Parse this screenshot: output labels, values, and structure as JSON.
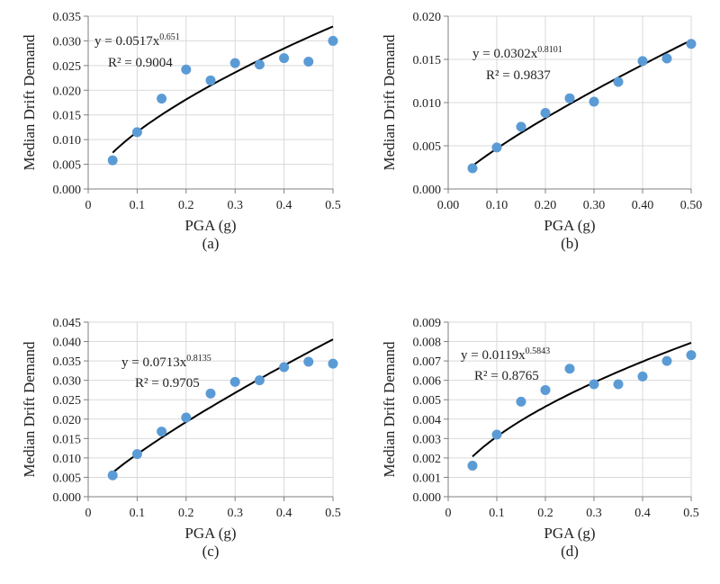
{
  "colors": {
    "point": "#5B9BD5",
    "trend": "#000000",
    "grid": "#d9d9d9",
    "axis": "#7f7f7f"
  },
  "chart_data": [
    {
      "type": "scatter",
      "panel_label": "(a)",
      "xlabel": "PGA (g)",
      "ylabel": "Median Drift Demand",
      "xlim": [
        0,
        0.5
      ],
      "ylim": [
        0,
        0.035
      ],
      "xticks": [
        "0",
        "0.1",
        "0.2",
        "0.3",
        "0.4",
        "0.5"
      ],
      "yticks": [
        "0.000",
        "0.005",
        "0.010",
        "0.015",
        "0.020",
        "0.025",
        "0.030",
        "0.035"
      ],
      "x": [
        0.05,
        0.1,
        0.15,
        0.2,
        0.25,
        0.3,
        0.35,
        0.4,
        0.45,
        0.5
      ],
      "y": [
        0.0058,
        0.0115,
        0.0183,
        0.0242,
        0.022,
        0.0255,
        0.0252,
        0.0265,
        0.0258,
        0.03
      ],
      "trendline": {
        "type": "power",
        "a": 0.0517,
        "b": 0.651,
        "equation": "y = 0.0517x",
        "exponent": "0.651",
        "r2_label": "R² = 0.9004"
      },
      "grid": true
    },
    {
      "type": "scatter",
      "panel_label": "(b)",
      "xlabel": "PGA (g)",
      "ylabel": "Median Drift Demand",
      "xlim": [
        0,
        0.5
      ],
      "ylim": [
        0,
        0.02
      ],
      "xticks": [
        "0.00",
        "0.10",
        "0.20",
        "0.30",
        "0.40",
        "0.50"
      ],
      "yticks": [
        "0.000",
        "0.005",
        "0.010",
        "0.015",
        "0.020"
      ],
      "x": [
        0.05,
        0.1,
        0.15,
        0.2,
        0.25,
        0.3,
        0.35,
        0.4,
        0.45,
        0.5
      ],
      "y": [
        0.0024,
        0.0048,
        0.0072,
        0.0088,
        0.0105,
        0.0101,
        0.0124,
        0.0148,
        0.0151,
        0.0168
      ],
      "trendline": {
        "type": "power",
        "a": 0.0302,
        "b": 0.8101,
        "equation": "y = 0.0302x",
        "exponent": "0.8101",
        "r2_label": "R² = 0.9837"
      },
      "grid": true
    },
    {
      "type": "scatter",
      "panel_label": "(c)",
      "xlabel": "PGA (g)",
      "ylabel": "Median Drift Demand",
      "xlim": [
        0,
        0.5
      ],
      "ylim": [
        0,
        0.045
      ],
      "xticks": [
        "0",
        "0.1",
        "0.2",
        "0.3",
        "0.4",
        "0.5"
      ],
      "yticks": [
        "0.000",
        "0.005",
        "0.010",
        "0.015",
        "0.020",
        "0.025",
        "0.030",
        "0.035",
        "0.040",
        "0.045"
      ],
      "x": [
        0.05,
        0.1,
        0.15,
        0.2,
        0.25,
        0.3,
        0.35,
        0.4,
        0.45,
        0.5
      ],
      "y": [
        0.0055,
        0.011,
        0.0168,
        0.0204,
        0.0266,
        0.0296,
        0.03,
        0.0334,
        0.0348,
        0.0343
      ],
      "trendline": {
        "type": "power",
        "a": 0.0713,
        "b": 0.8135,
        "equation": "y = 0.0713x",
        "exponent": "0.8135",
        "r2_label": "R² = 0.9705"
      },
      "grid": true
    },
    {
      "type": "scatter",
      "panel_label": "(d)",
      "xlabel": "PGA (g)",
      "ylabel": "Median Drift Demand",
      "xlim": [
        0,
        0.5
      ],
      "ylim": [
        0,
        0.009
      ],
      "xticks": [
        "0",
        "0.1",
        "0.2",
        "0.3",
        "0.4",
        "0.5"
      ],
      "yticks": [
        "0.000",
        "0.001",
        "0.002",
        "0.003",
        "0.004",
        "0.005",
        "0.006",
        "0.007",
        "0.008",
        "0.009"
      ],
      "x": [
        0.05,
        0.1,
        0.15,
        0.2,
        0.25,
        0.3,
        0.35,
        0.4,
        0.45,
        0.5
      ],
      "y": [
        0.0016,
        0.0032,
        0.0049,
        0.0055,
        0.0066,
        0.0058,
        0.0058,
        0.0062,
        0.007,
        0.0073
      ],
      "trendline": {
        "type": "power",
        "a": 0.0119,
        "b": 0.5843,
        "equation": "y = 0.0119x",
        "exponent": "0.5843",
        "r2_label": "R² = 0.8765"
      },
      "grid": true
    }
  ]
}
